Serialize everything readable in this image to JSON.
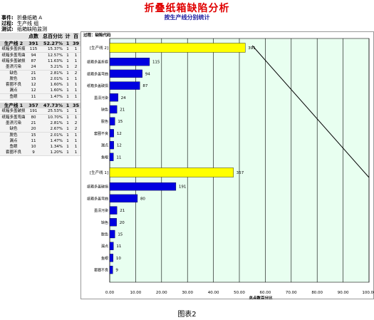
{
  "header": {
    "title": "折叠纸箱缺陷分析",
    "subtitle": "按生产线分别统计",
    "meta": [
      {
        "label": "事件:",
        "value": "折叠纸箱 A"
      },
      {
        "label": "过程:",
        "value": "生产线 组"
      },
      {
        "label": "测试:",
        "value": "纸箱缺陷监测"
      }
    ]
  },
  "table": {
    "headers": [
      "",
      "点数",
      "总百分比",
      "计",
      "百"
    ],
    "groups": [
      {
        "name": "生产线 2",
        "count": "391",
        "pct": "52.27%",
        "c3": "1",
        "c4": "39",
        "rows": [
          {
            "name": "纸箱多盖折痕",
            "count": "115",
            "pct": "15.37%",
            "c3": "1",
            "c4": "1"
          },
          {
            "name": "纸箱多盖弯曲",
            "count": "94",
            "pct": "12.57%",
            "c3": "1",
            "c4": "1"
          },
          {
            "name": "纸箱多盖破损",
            "count": "87",
            "pct": "11.63%",
            "c3": "1",
            "c4": "1"
          },
          {
            "name": "墨渍污染",
            "count": "24",
            "pct": "3.21%",
            "c3": "1",
            "c4": "2"
          },
          {
            "name": "缺色",
            "count": "21",
            "pct": "2.81%",
            "c3": "1",
            "c4": "2"
          },
          {
            "name": "脱色",
            "count": "15",
            "pct": "2.01%",
            "c3": "1",
            "c4": "1"
          },
          {
            "name": "套圈不良",
            "count": "12",
            "pct": "1.60%",
            "c3": "1",
            "c4": "1"
          },
          {
            "name": "漏点",
            "count": "12",
            "pct": "1.60%",
            "c3": "1",
            "c4": "1"
          },
          {
            "name": "鱼眼",
            "count": "11",
            "pct": "1.47%",
            "c3": "1",
            "c4": "1"
          }
        ]
      },
      {
        "name": "生产线 1",
        "count": "357",
        "pct": "47.73%",
        "c3": "1",
        "c4": "35",
        "rows": [
          {
            "name": "纸箱多盖破损",
            "count": "191",
            "pct": "25.53%",
            "c3": "1",
            "c4": "1"
          },
          {
            "name": "纸箱多盖弯曲",
            "count": "80",
            "pct": "10.70%",
            "c3": "1",
            "c4": "1"
          },
          {
            "name": "墨渍污染",
            "count": "21",
            "pct": "2.81%",
            "c3": "1",
            "c4": "2"
          },
          {
            "name": "缺色",
            "count": "20",
            "pct": "2.67%",
            "c3": "1",
            "c4": "2"
          },
          {
            "name": "脱色",
            "count": "15",
            "pct": "2.01%",
            "c3": "1",
            "c4": "1"
          },
          {
            "name": "漏点",
            "count": "11",
            "pct": "1.47%",
            "c3": "1",
            "c4": "1"
          },
          {
            "name": "鱼眼",
            "count": "10",
            "pct": "1.34%",
            "c3": "1",
            "c4": "1"
          },
          {
            "name": "套圈不良",
            "count": "9",
            "pct": "1.20%",
            "c3": "1",
            "c4": "1"
          }
        ]
      }
    ]
  },
  "chart_data": {
    "type": "bar",
    "orientation": "horizontal",
    "panel_title": "过程：缺陷代码",
    "xlabel": "总点数百分比",
    "xlim": [
      0,
      100
    ],
    "xticks": [
      "0.00",
      "10.00",
      "20.00",
      "30.00",
      "40.00",
      "50.00",
      "60.00",
      "70.00",
      "80.00",
      "90.00",
      "100.00"
    ],
    "grid": "vertical",
    "colors": {
      "group": "#ffff00",
      "item": "#0000e0",
      "background": "#e8fff0",
      "grid": "#000000"
    },
    "groups": [
      {
        "label": "[生产线 2]",
        "value": 391,
        "percent": 52.27,
        "items": [
          {
            "label": "纸箱多盖折痕",
            "value": 115,
            "percent": 15.37
          },
          {
            "label": "纸箱多盖弯曲",
            "value": 94,
            "percent": 12.57
          },
          {
            "label": "纸箱多盖破损",
            "value": 87,
            "percent": 11.63
          },
          {
            "label": "墨渍污染",
            "value": 24,
            "percent": 3.21
          },
          {
            "label": "缺色",
            "value": 21,
            "percent": 2.81
          },
          {
            "label": "脱色",
            "value": 15,
            "percent": 2.01
          },
          {
            "label": "套圈不良",
            "value": 12,
            "percent": 1.6
          },
          {
            "label": "漏点",
            "value": 12,
            "percent": 1.6
          },
          {
            "label": "鱼眼",
            "value": 11,
            "percent": 1.47
          }
        ]
      },
      {
        "label": "[生产线 1]",
        "value": 357,
        "percent": 47.73,
        "items": [
          {
            "label": "纸箱多盖破损",
            "value": 191,
            "percent": 25.53
          },
          {
            "label": "纸箱多盖弯曲",
            "value": 80,
            "percent": 10.7
          },
          {
            "label": "墨渍污染",
            "value": 21,
            "percent": 2.81
          },
          {
            "label": "缺色",
            "value": 20,
            "percent": 2.67
          },
          {
            "label": "脱色",
            "value": 15,
            "percent": 2.01
          },
          {
            "label": "漏点",
            "value": 11,
            "percent": 1.47
          },
          {
            "label": "鱼眼",
            "value": 10,
            "percent": 1.34
          },
          {
            "label": "套圈不良",
            "value": 9,
            "percent": 1.2
          }
        ]
      }
    ],
    "cumulative_line": {
      "from_percent": 52.27,
      "to_percent": 100
    }
  },
  "caption": "图表2"
}
